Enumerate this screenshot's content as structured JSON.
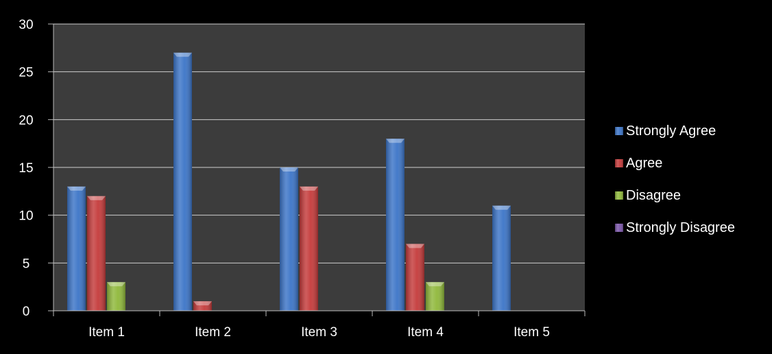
{
  "chart_data": {
    "type": "bar",
    "categories": [
      "Item 1",
      "Item 2",
      "Item 3",
      "Item 4",
      "Item 5"
    ],
    "series": [
      {
        "name": "Strongly Agree",
        "color": "#3b74c7",
        "values": [
          13,
          27,
          15,
          18,
          11
        ]
      },
      {
        "name": "Agree",
        "color": "#c43a3a",
        "values": [
          12,
          1,
          13,
          7,
          0
        ]
      },
      {
        "name": "Disagree",
        "color": "#8fb83a",
        "values": [
          3,
          0,
          0,
          3,
          0
        ]
      },
      {
        "name": "Strongly Disagree",
        "color": "#7a55a8",
        "values": [
          0,
          0,
          0,
          0,
          0
        ]
      }
    ],
    "ylim": [
      0,
      30
    ],
    "yticks": [
      0,
      5,
      10,
      15,
      20,
      25,
      30
    ],
    "ytick_labels": [
      "0",
      "5",
      "10",
      "15",
      "20",
      "25",
      "30"
    ],
    "grid": true,
    "legend_position": "right",
    "plot_background": "#3c3c3c",
    "title": "",
    "xlabel": "",
    "ylabel": ""
  }
}
